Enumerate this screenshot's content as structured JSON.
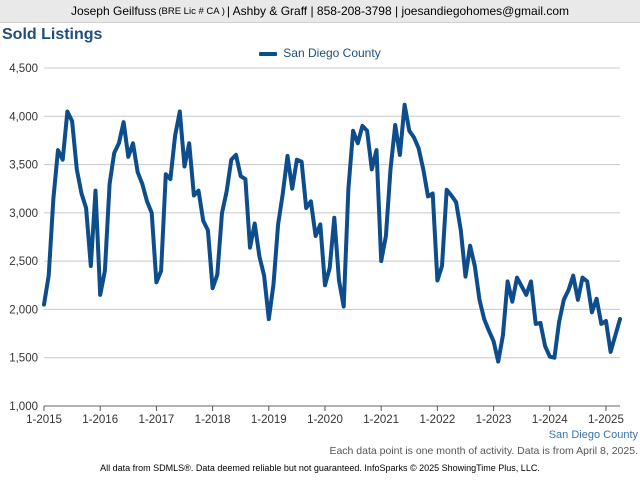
{
  "header": {
    "name": "Joseph Geilfuss",
    "license": "(BRE Lic # CA )",
    "rest": "| Ashby & Graff | 858-208-3798 | joesandiegohomes@gmail.com"
  },
  "footer": {
    "note": "Each data point is one month of activity. Data is from April 8, 2025.",
    "disclaimer": "All data from SDMLS®. Data deemed reliable but not guaranteed. InfoSparks © 2025 ShowingTime Plus, LLC."
  },
  "colors": {
    "series": "#0d4d8c",
    "title": "#1f4e79",
    "grid": "#c8c8c8"
  },
  "chart_data": {
    "type": "line",
    "title": "Sold Listings",
    "xlabel": "San Diego County",
    "ylabel": "",
    "ylim": [
      1000,
      4500
    ],
    "yticks": [
      1000,
      1500,
      2000,
      2500,
      3000,
      3500,
      4000,
      4500
    ],
    "ytick_labels": [
      "1,000",
      "1,500",
      "2,000",
      "2,500",
      "3,000",
      "3,500",
      "4,000",
      "4,500"
    ],
    "xticks": [
      2015,
      2016,
      2017,
      2018,
      2019,
      2020,
      2021,
      2022,
      2023,
      2024,
      2025
    ],
    "xtick_labels": [
      "1-2015",
      "1-2016",
      "1-2017",
      "1-2018",
      "1-2019",
      "1-2020",
      "1-2021",
      "1-2022",
      "1-2023",
      "1-2024",
      "1-2025"
    ],
    "legend": "top-center",
    "grid": true,
    "x_start": "2015-01",
    "series": [
      {
        "name": "San Diego County",
        "values": [
          2050,
          2350,
          3150,
          3650,
          3550,
          4050,
          3950,
          3450,
          3200,
          3050,
          2450,
          3230,
          2150,
          2400,
          3300,
          3620,
          3720,
          3940,
          3580,
          3720,
          3420,
          3300,
          3120,
          3000,
          2280,
          2400,
          3400,
          3350,
          3800,
          4050,
          3480,
          3720,
          3180,
          3230,
          2920,
          2820,
          2220,
          2360,
          3000,
          3220,
          3550,
          3600,
          3380,
          3350,
          2640,
          2890,
          2550,
          2350,
          1900,
          2260,
          2880,
          3200,
          3590,
          3250,
          3550,
          3530,
          3050,
          3120,
          2760,
          2880,
          2250,
          2430,
          2950,
          2300,
          2030,
          3250,
          3850,
          3720,
          3900,
          3850,
          3450,
          3650,
          2500,
          2760,
          3450,
          3910,
          3600,
          4120,
          3850,
          3780,
          3670,
          3450,
          3170,
          3200,
          2300,
          2450,
          3240,
          3180,
          3110,
          2820,
          2340,
          2660,
          2450,
          2100,
          1900,
          1780,
          1670,
          1460,
          1730,
          2290,
          2080,
          2330,
          2240,
          2150,
          2290,
          1850,
          1860,
          1620,
          1510,
          1500,
          1870,
          2100,
          2200,
          2350,
          2100,
          2330,
          2290,
          1970,
          2110,
          1850,
          1880,
          1560,
          1730,
          1900
        ]
      }
    ]
  }
}
